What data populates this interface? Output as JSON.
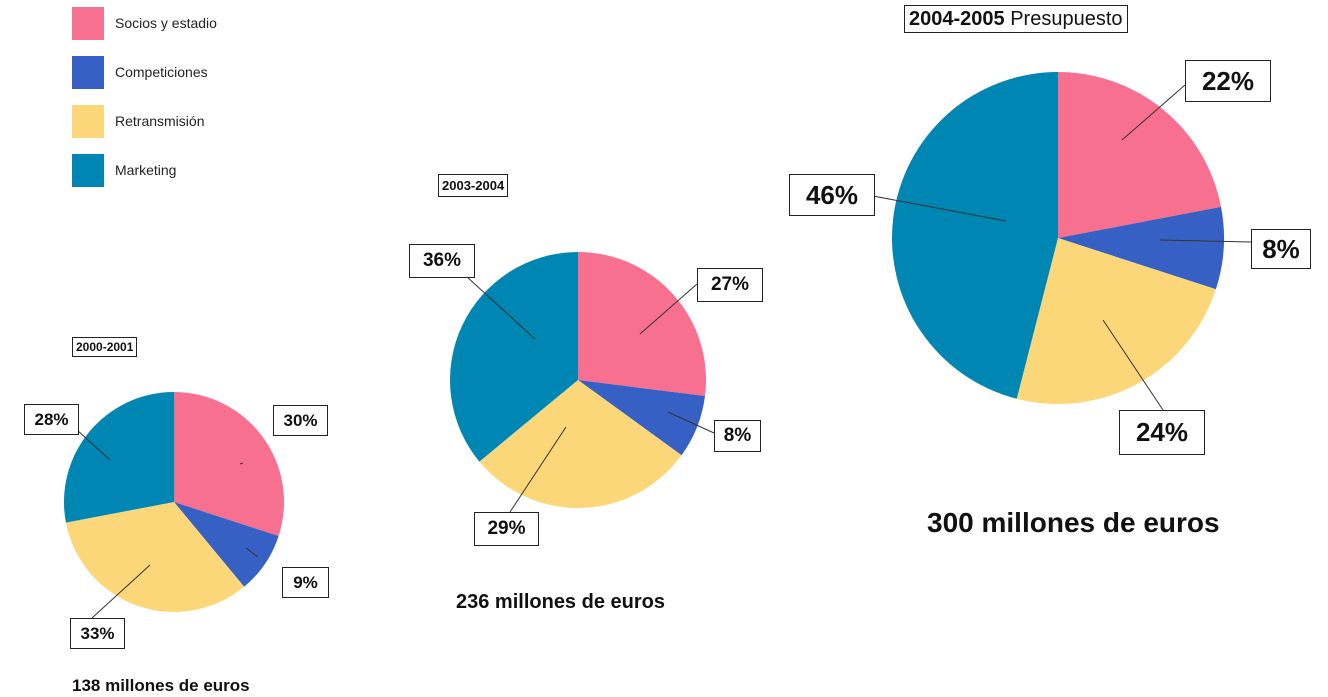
{
  "legend": [
    {
      "label": "Socios y estadio",
      "color": "#F8708F"
    },
    {
      "label": "Competiciones",
      "color": "#3760C5"
    },
    {
      "label": "Retransmisión",
      "color": "#FCD77A"
    },
    {
      "label": "Marketing",
      "color": "#0086B2"
    }
  ],
  "charts": [
    {
      "period": "2000-2001",
      "period_suffix": "",
      "total": "138 millones de euros"
    },
    {
      "period": "2003-2004",
      "period_suffix": "",
      "total": "236 millones de euros"
    },
    {
      "period": "2004-2005",
      "period_suffix": "Presupuesto",
      "total": "300 millones de euros"
    }
  ],
  "chart_data": [
    {
      "type": "pie",
      "title": "2000-2001",
      "categories": [
        "Socios y estadio",
        "Competiciones",
        "Retransmisión",
        "Marketing"
      ],
      "values": [
        30,
        9,
        33,
        28
      ],
      "labels": [
        "30%",
        "9%",
        "33%",
        "28%"
      ],
      "total": "138 millones de euros",
      "legend_position": "top-left"
    },
    {
      "type": "pie",
      "title": "2003-2004",
      "categories": [
        "Socios y estadio",
        "Competiciones",
        "Retransmisión",
        "Marketing"
      ],
      "values": [
        27,
        8,
        29,
        36
      ],
      "labels": [
        "27%",
        "8%",
        "29%",
        "36%"
      ],
      "total": "236 millones de euros",
      "legend_position": "top-left"
    },
    {
      "type": "pie",
      "title": "2004-2005 Presupuesto",
      "categories": [
        "Socios y estadio",
        "Competiciones",
        "Retransmisión",
        "Marketing"
      ],
      "values": [
        22,
        8,
        24,
        46
      ],
      "labels": [
        "22%",
        "8%",
        "24%",
        "46%"
      ],
      "total": "300 millones de euros",
      "legend_position": "top-left"
    }
  ]
}
